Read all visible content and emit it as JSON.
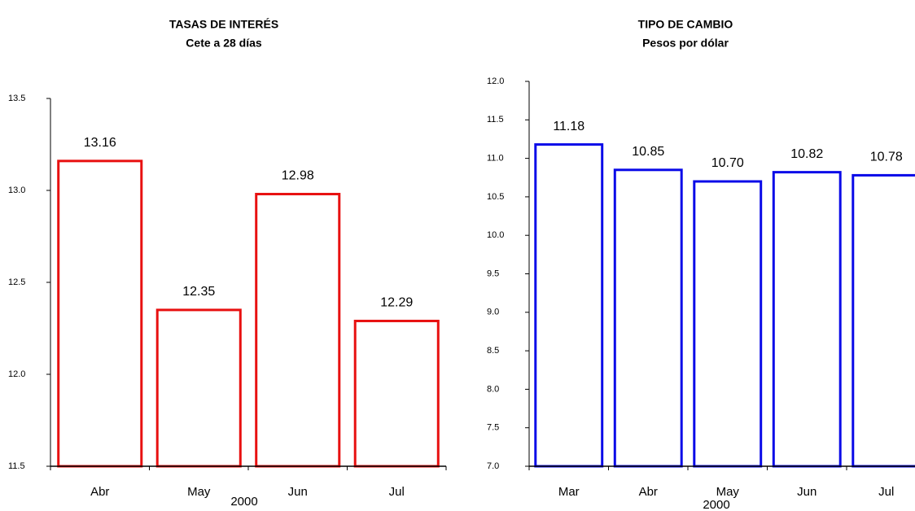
{
  "chart_data": [
    {
      "type": "bar",
      "title": "TASAS DE INTERÉS",
      "subtitle": "Cete a 28 días",
      "x_label": "2000",
      "categories": [
        "Abr",
        "May",
        "Jun",
        "Jul"
      ],
      "values": [
        13.16,
        12.35,
        12.98,
        12.29
      ],
      "color": "#e81010",
      "ylim": [
        11.5,
        13.5
      ],
      "yticks": [
        11.5,
        {
          "value": 12,
          "label": "12.0"
        },
        12.5,
        {
          "value": 13,
          "label": "13.0"
        },
        13.5
      ]
    },
    {
      "type": "bar",
      "title": "TIPO DE CAMBIO",
      "subtitle": "Pesos por dólar",
      "x_label": "2000",
      "categories": [
        "Mar",
        "Abr",
        "May",
        "Jun",
        "Jul"
      ],
      "values": [
        11.18,
        10.85,
        10.7,
        10.82,
        10.78
      ],
      "value_labels": [
        "11.18",
        "10.85",
        "10.70",
        "10.82",
        "10.78"
      ],
      "color": "#0a0ae8",
      "ylim": [
        7,
        12
      ],
      "yticks": [
        {
          "value": 7,
          "label": "7.0"
        },
        7.5,
        {
          "value": 8,
          "label": "8.0"
        },
        8.5,
        {
          "value": 9,
          "label": "9.0"
        },
        9.5,
        {
          "value": 10,
          "label": "10.0"
        },
        10.5,
        {
          "value": 11,
          "label": "11.0"
        },
        11.5,
        {
          "value": 12,
          "label": "12.0"
        }
      ]
    }
  ]
}
